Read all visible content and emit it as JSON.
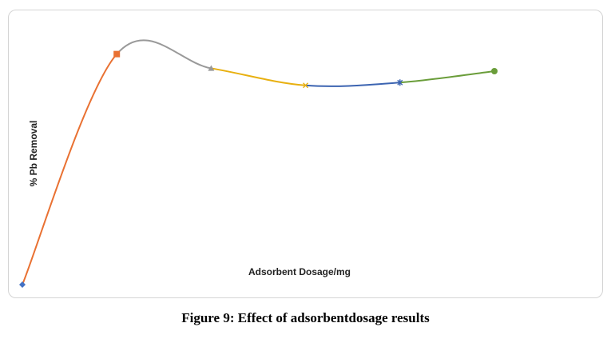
{
  "caption": "Figure 9: Effect of adsorbentdosage results",
  "chart_data": {
    "type": "line",
    "title": "",
    "xlabel": "Adsorbent Dosage/mg",
    "ylabel": "% Pb Removal",
    "x": [
      1,
      2,
      3,
      4,
      5,
      6
    ],
    "y": [
      0,
      81,
      76,
      70,
      71,
      75
    ],
    "ylim": [
      0,
      100
    ],
    "grid": false,
    "smooth": true,
    "segments": [
      {
        "from": 0,
        "to": 1,
        "color": "#E97132"
      },
      {
        "from": 1,
        "to": 2,
        "color": "#999999"
      },
      {
        "from": 2,
        "to": 3,
        "color": "#E8B010"
      },
      {
        "from": 3,
        "to": 4,
        "color": "#3C64B1"
      },
      {
        "from": 4,
        "to": 5,
        "color": "#6A9D3A"
      }
    ],
    "markers": [
      {
        "shape": "diamond",
        "color": "#4472C4"
      },
      {
        "shape": "square",
        "color": "#E97132"
      },
      {
        "shape": "triangle",
        "color": "#999999"
      },
      {
        "shape": "x",
        "color": "#E8B010"
      },
      {
        "shape": "asterisk",
        "color": "#3C64B1"
      },
      {
        "shape": "circle",
        "color": "#6A9D3A"
      }
    ]
  }
}
